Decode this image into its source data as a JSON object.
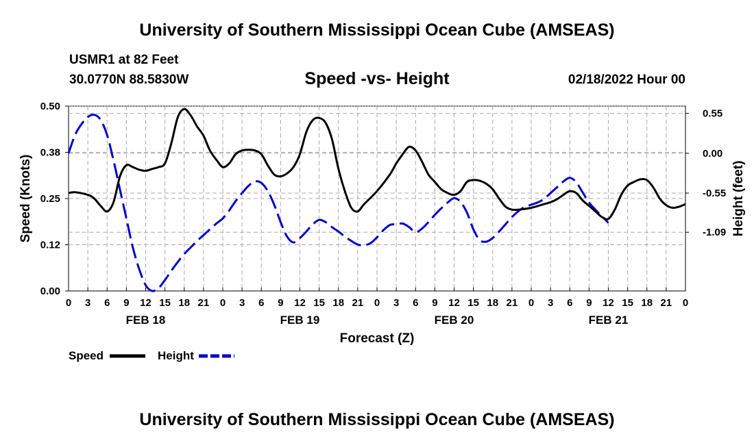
{
  "header": {
    "title": "University of Southern Mississippi Ocean Cube (AMSEAS)",
    "station": "USMR1 at 82 Feet",
    "coords": "30.0770N  88.5830W",
    "subtitle": "Speed -vs- Height",
    "datetime": "02/18/2022 Hour 00"
  },
  "footer": {
    "title": "University of Southern Mississippi Ocean Cube (AMSEAS)"
  },
  "chart_data": {
    "type": "line",
    "title": "Speed -vs- Height",
    "xlabel": "Forecast (Z)",
    "ylabel": "Speed (Knots)",
    "y2label": "Height (feet)",
    "x_unit": "hours from 02/18/2022 00Z",
    "xlim": [
      0,
      96
    ],
    "x_tick_labels": [
      "0",
      "3",
      "6",
      "9",
      "12",
      "15",
      "18",
      "21",
      "0",
      "3",
      "6",
      "9",
      "12",
      "15",
      "18",
      "21",
      "0",
      "3",
      "6",
      "9",
      "12",
      "15",
      "18",
      "21",
      "0",
      "3",
      "6",
      "9",
      "12",
      "15",
      "18",
      "21",
      "0"
    ],
    "day_labels": [
      {
        "hour": 12,
        "label": "FEB 18"
      },
      {
        "hour": 36,
        "label": "FEB 19"
      },
      {
        "hour": 60,
        "label": "FEB 20"
      },
      {
        "hour": 84,
        "label": "FEB 21"
      }
    ],
    "ylim": [
      0,
      0.5
    ],
    "y_ticks": [
      0.0,
      0.125,
      0.25,
      0.375,
      0.5
    ],
    "y_tick_labels": [
      "0.00",
      "0.12",
      "0.25",
      "0.38",
      "0.50"
    ],
    "y2lim": [
      -1.9,
      0.65
    ],
    "y2_ticks": [
      0.55,
      0.0,
      -0.55,
      -1.09
    ],
    "y2_tick_labels": [
      "0.55",
      "0.00",
      "-0.55",
      "-1.09"
    ],
    "grid": true,
    "legend": [
      {
        "label": "Speed",
        "color": "#000000",
        "style": "solid"
      },
      {
        "label": "Height",
        "color": "#0000cc",
        "style": "dashed"
      }
    ],
    "series": [
      {
        "name": "Speed",
        "axis": "left",
        "units": "knots",
        "color": "#000000",
        "style": "solid",
        "points": [
          [
            0,
            0.265
          ],
          [
            1,
            0.267
          ],
          [
            3,
            0.26
          ],
          [
            4,
            0.25
          ],
          [
            5,
            0.23
          ],
          [
            6,
            0.215
          ],
          [
            7,
            0.24
          ],
          [
            8,
            0.31
          ],
          [
            9,
            0.34
          ],
          [
            10,
            0.335
          ],
          [
            11,
            0.328
          ],
          [
            12,
            0.325
          ],
          [
            13,
            0.33
          ],
          [
            14,
            0.335
          ],
          [
            15,
            0.345
          ],
          [
            16,
            0.4
          ],
          [
            17,
            0.47
          ],
          [
            18,
            0.492
          ],
          [
            19,
            0.475
          ],
          [
            20,
            0.445
          ],
          [
            21,
            0.42
          ],
          [
            22,
            0.38
          ],
          [
            23,
            0.355
          ],
          [
            24,
            0.335
          ],
          [
            25,
            0.345
          ],
          [
            26,
            0.37
          ],
          [
            27,
            0.38
          ],
          [
            28,
            0.382
          ],
          [
            29,
            0.38
          ],
          [
            30,
            0.37
          ],
          [
            31,
            0.34
          ],
          [
            32,
            0.315
          ],
          [
            33,
            0.31
          ],
          [
            34,
            0.318
          ],
          [
            35,
            0.335
          ],
          [
            36,
            0.37
          ],
          [
            37,
            0.43
          ],
          [
            38,
            0.462
          ],
          [
            39,
            0.468
          ],
          [
            40,
            0.455
          ],
          [
            41,
            0.41
          ],
          [
            42,
            0.33
          ],
          [
            43,
            0.27
          ],
          [
            44,
            0.225
          ],
          [
            45,
            0.215
          ],
          [
            46,
            0.235
          ],
          [
            48,
            0.27
          ],
          [
            50,
            0.315
          ],
          [
            51,
            0.345
          ],
          [
            52,
            0.37
          ],
          [
            53,
            0.39
          ],
          [
            54,
            0.38
          ],
          [
            55,
            0.35
          ],
          [
            56,
            0.315
          ],
          [
            57,
            0.295
          ],
          [
            58,
            0.275
          ],
          [
            59,
            0.265
          ],
          [
            60,
            0.26
          ],
          [
            61,
            0.27
          ],
          [
            62,
            0.295
          ],
          [
            63,
            0.3
          ],
          [
            64,
            0.298
          ],
          [
            65,
            0.29
          ],
          [
            66,
            0.275
          ],
          [
            67,
            0.25
          ],
          [
            68,
            0.228
          ],
          [
            69,
            0.22
          ],
          [
            70,
            0.22
          ],
          [
            72,
            0.225
          ],
          [
            74,
            0.235
          ],
          [
            75,
            0.24
          ],
          [
            76,
            0.248
          ],
          [
            77,
            0.26
          ],
          [
            78,
            0.27
          ],
          [
            79,
            0.265
          ],
          [
            80,
            0.245
          ],
          [
            81,
            0.23
          ],
          [
            82,
            0.215
          ],
          [
            83,
            0.2
          ],
          [
            84,
            0.195
          ],
          [
            85,
            0.22
          ],
          [
            86,
            0.26
          ],
          [
            87,
            0.285
          ],
          [
            88,
            0.295
          ],
          [
            89,
            0.302
          ],
          [
            90,
            0.3
          ],
          [
            91,
            0.28
          ],
          [
            92,
            0.25
          ],
          [
            93,
            0.232
          ],
          [
            94,
            0.225
          ],
          [
            95,
            0.228
          ],
          [
            96,
            0.235
          ]
        ]
      },
      {
        "name": "Height",
        "axis": "right",
        "units": "feet",
        "color": "#0000cc",
        "style": "dashed",
        "points": [
          [
            0,
            0.0
          ],
          [
            1,
            0.25
          ],
          [
            2,
            0.4
          ],
          [
            3,
            0.5
          ],
          [
            4,
            0.53
          ],
          [
            5,
            0.46
          ],
          [
            6,
            0.25
          ],
          [
            7,
            -0.1
          ],
          [
            8,
            -0.5
          ],
          [
            9,
            -0.9
          ],
          [
            10,
            -1.3
          ],
          [
            11,
            -1.6
          ],
          [
            12,
            -1.82
          ],
          [
            13,
            -1.9
          ],
          [
            14,
            -1.86
          ],
          [
            15,
            -1.75
          ],
          [
            16,
            -1.62
          ],
          [
            17,
            -1.5
          ],
          [
            18,
            -1.39
          ],
          [
            19,
            -1.3
          ],
          [
            20,
            -1.21
          ],
          [
            21,
            -1.13
          ],
          [
            22,
            -1.05
          ],
          [
            23,
            -0.97
          ],
          [
            24,
            -0.9
          ],
          [
            25,
            -0.79
          ],
          [
            26,
            -0.66
          ],
          [
            27,
            -0.55
          ],
          [
            28,
            -0.45
          ],
          [
            29,
            -0.39
          ],
          [
            30,
            -0.41
          ],
          [
            31,
            -0.52
          ],
          [
            32,
            -0.71
          ],
          [
            33,
            -0.95
          ],
          [
            34,
            -1.15
          ],
          [
            35,
            -1.23
          ],
          [
            36,
            -1.17
          ],
          [
            37,
            -1.08
          ],
          [
            38,
            -0.98
          ],
          [
            39,
            -0.92
          ],
          [
            40,
            -0.95
          ],
          [
            41,
            -1.02
          ],
          [
            42,
            -1.08
          ],
          [
            43,
            -1.15
          ],
          [
            44,
            -1.21
          ],
          [
            45,
            -1.26
          ],
          [
            46,
            -1.27
          ],
          [
            47,
            -1.24
          ],
          [
            48,
            -1.16
          ],
          [
            49,
            -1.06
          ],
          [
            50,
            -0.99
          ],
          [
            51,
            -0.98
          ],
          [
            52,
            -0.97
          ],
          [
            53,
            -1.02
          ],
          [
            54,
            -1.09
          ],
          [
            55,
            -1.04
          ],
          [
            56,
            -0.95
          ],
          [
            57,
            -0.85
          ],
          [
            58,
            -0.76
          ],
          [
            59,
            -0.68
          ],
          [
            60,
            -0.62
          ],
          [
            61,
            -0.67
          ],
          [
            62,
            -0.82
          ],
          [
            63,
            -1.05
          ],
          [
            64,
            -1.2
          ],
          [
            65,
            -1.22
          ],
          [
            66,
            -1.17
          ],
          [
            67,
            -1.08
          ],
          [
            68,
            -0.98
          ],
          [
            69,
            -0.88
          ],
          [
            70,
            -0.8
          ],
          [
            71,
            -0.74
          ],
          [
            72,
            -0.71
          ],
          [
            73,
            -0.68
          ],
          [
            74,
            -0.63
          ],
          [
            75,
            -0.55
          ],
          [
            76,
            -0.47
          ],
          [
            77,
            -0.39
          ],
          [
            78,
            -0.34
          ],
          [
            79,
            -0.4
          ],
          [
            80,
            -0.54
          ],
          [
            81,
            -0.68
          ],
          [
            82,
            -0.78
          ],
          [
            83,
            -0.87
          ],
          [
            84,
            -0.96
          ]
        ]
      }
    ]
  }
}
